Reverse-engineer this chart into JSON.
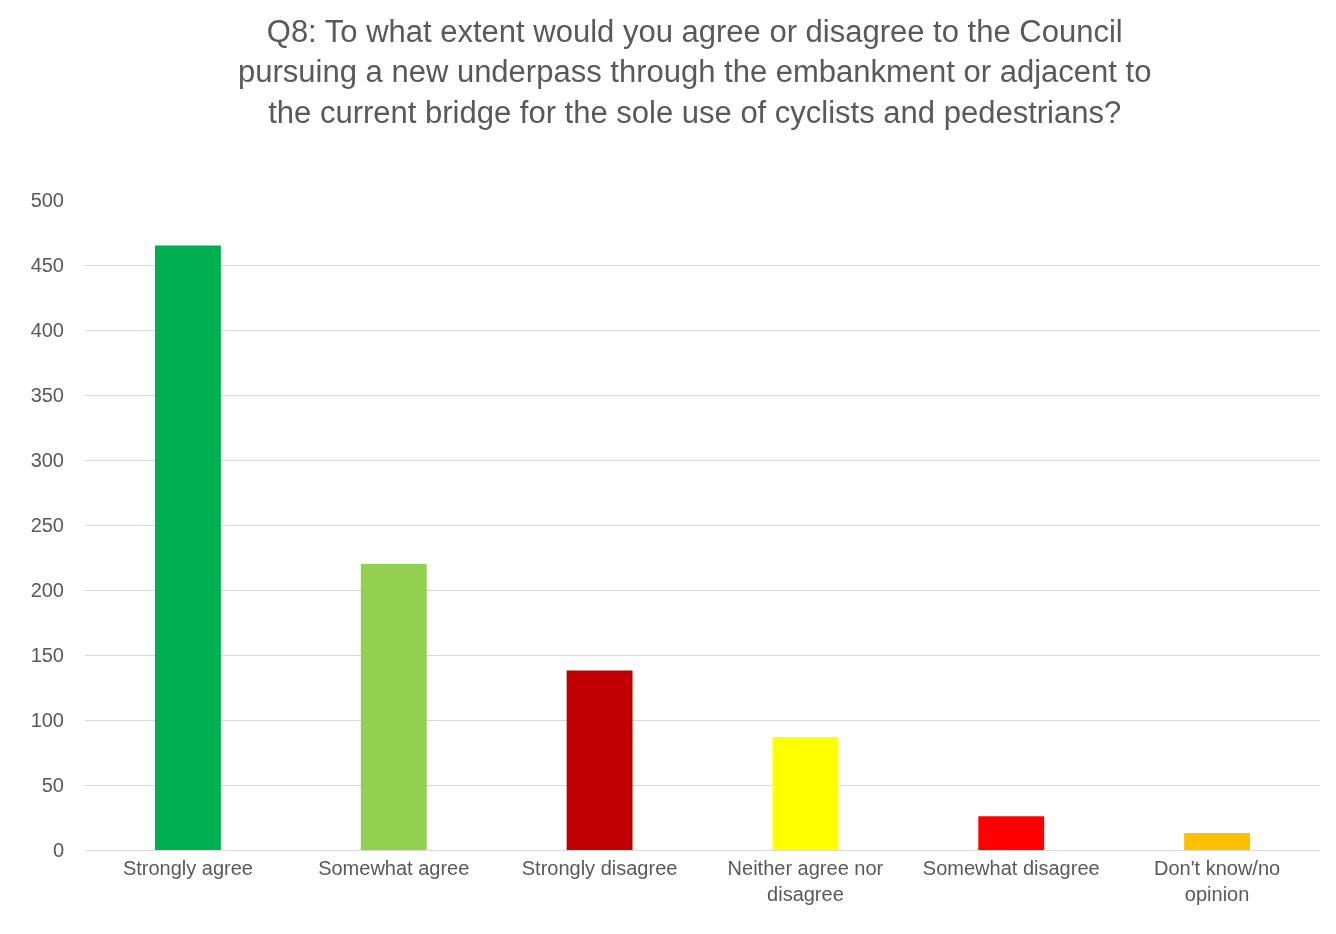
{
  "chart_data": {
    "type": "bar",
    "title": "Q8: To what extent would you agree or disagree to the Council pursuing a new underpass through the embankment or adjacent to the current bridge for the sole use of cyclists and pedestrians?",
    "categories": [
      "Strongly agree",
      "Somewhat agree",
      "Strongly disagree",
      "Neither agree nor disagree",
      "Somewhat disagree",
      "Don't know/no opinion"
    ],
    "values": [
      465,
      220,
      138,
      87,
      26,
      13
    ],
    "colors": [
      "#00b050",
      "#92d050",
      "#c00000",
      "#ffff00",
      "#ff0000",
      "#ffc000"
    ],
    "ylim": [
      0,
      500
    ],
    "yticks": [
      0,
      50,
      100,
      150,
      200,
      250,
      300,
      350,
      400,
      450,
      500
    ],
    "grid": "y",
    "legend": false
  }
}
